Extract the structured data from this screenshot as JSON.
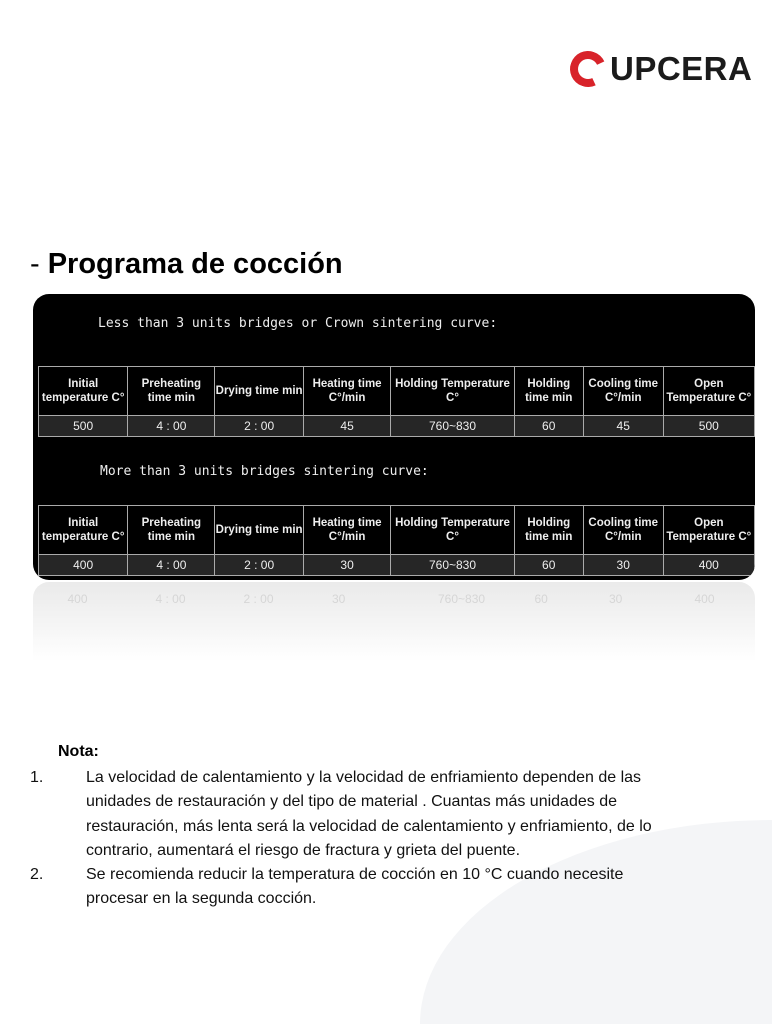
{
  "brand": {
    "name": "UPCERA",
    "accent": "#d8232a"
  },
  "title": {
    "dash": "- ",
    "text": "Programa de cocción"
  },
  "columns": [
    "Initial temperature C°",
    "Preheating time min",
    "Drying time min",
    "Heating time C°/min",
    "Holding Temperature C°",
    "Holding time min",
    "Cooling time C°/min",
    "Open Temperature C°"
  ],
  "tables": [
    {
      "caption": "Less than 3 units bridges or Crown sintering curve:",
      "values": [
        "500",
        "4 : 00",
        "2 : 00",
        "45",
        "760~830",
        "60",
        "45",
        "500"
      ]
    },
    {
      "caption": "More than 3 units bridges sintering curve:",
      "values": [
        "400",
        "4 : 00",
        "2 : 00",
        "30",
        "760~830",
        "60",
        "30",
        "400"
      ]
    }
  ],
  "note": {
    "label": "Nota:",
    "items": [
      {
        "num": "1.",
        "text": "La velocidad de calentamiento y la velocidad de enfriamiento dependen de las unidades de restauración y del tipo de material . Cuantas más unidades de restauración, más lenta será la velocidad de calentamiento y enfriamiento, de lo contrario, aumentará el riesgo de fractura y grieta del puente."
      },
      {
        "num": "2.",
        "text": "Se recomienda reducir la temperatura de cocción en 10 °C cuando necesite procesar en la segunda cocción."
      }
    ]
  }
}
